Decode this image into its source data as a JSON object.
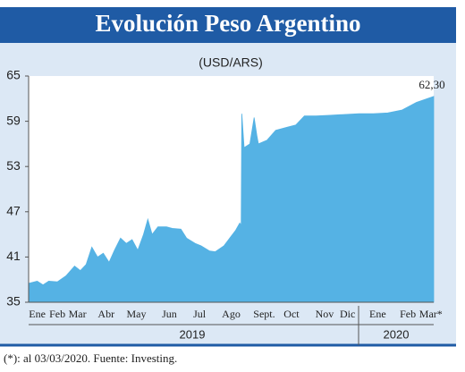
{
  "chart_data": {
    "type": "area",
    "title": "Evolución Peso Argentino",
    "subtitle": "(USD/ARS)",
    "color": "#55b2e4",
    "x": [
      0,
      0.3,
      0.5,
      0.7,
      1.0,
      1.3,
      1.6,
      1.8,
      2.0,
      2.2,
      2.4,
      2.6,
      2.8,
      3.0,
      3.2,
      3.4,
      3.6,
      3.8,
      4.0,
      4.15,
      4.3,
      4.5,
      4.8,
      5.0,
      5.3,
      5.5,
      5.8,
      6.0,
      6.3,
      6.5,
      6.8,
      7.0,
      7.2,
      7.35,
      7.4,
      7.42,
      7.5,
      7.7,
      7.85,
      7.95,
      8.0,
      8.3,
      8.6,
      9.0,
      9.3,
      9.6,
      10.0,
      10.5,
      11.0,
      11.5,
      12.0,
      12.5,
      13.0,
      13.5,
      14.1
    ],
    "values": [
      37.5,
      37.8,
      37.3,
      37.8,
      37.7,
      38.5,
      39.8,
      39.2,
      40.0,
      42.3,
      41.0,
      41.5,
      40.3,
      42.0,
      43.5,
      42.8,
      43.3,
      41.9,
      44.0,
      46.0,
      44.0,
      45.0,
      45.0,
      44.8,
      44.7,
      43.5,
      42.8,
      42.5,
      41.8,
      41.7,
      42.5,
      43.5,
      44.5,
      45.5,
      45.2,
      60.0,
      55.5,
      56.0,
      59.5,
      57.0,
      56.0,
      56.5,
      57.8,
      58.2,
      58.5,
      59.7,
      59.7,
      59.8,
      59.9,
      60.0,
      60.0,
      60.1,
      60.5,
      61.5,
      62.3
    ],
    "xlim": [
      0,
      14.1
    ],
    "xticks": [
      {
        "value": 0.3,
        "label": "Ene"
      },
      {
        "value": 1.0,
        "label": "Feb"
      },
      {
        "value": 1.7,
        "label": "Mar"
      },
      {
        "value": 2.7,
        "label": "Abr"
      },
      {
        "value": 3.75,
        "label": "May"
      },
      {
        "value": 4.9,
        "label": "Jun"
      },
      {
        "value": 5.95,
        "label": "Jul"
      },
      {
        "value": 7.05,
        "label": "Ago"
      },
      {
        "value": 8.2,
        "label": "Sept."
      },
      {
        "value": 9.15,
        "label": "Oct"
      },
      {
        "value": 10.3,
        "label": "Nov"
      },
      {
        "value": 11.1,
        "label": "Dic"
      },
      {
        "value": 12.15,
        "label": "Ene"
      },
      {
        "value": 13.2,
        "label": "Feb"
      },
      {
        "value": 14.0,
        "label": "Mar*"
      }
    ],
    "ylim": [
      35,
      65
    ],
    "yticks": [
      35,
      41,
      47,
      53,
      59,
      65
    ],
    "year_labels": [
      "2019",
      "2020"
    ],
    "annotations": [
      {
        "x": 14.1,
        "y": 62.3,
        "text": "62,30"
      }
    ],
    "note": "(*): al 03/03/2020. Fuente: Investing."
  }
}
